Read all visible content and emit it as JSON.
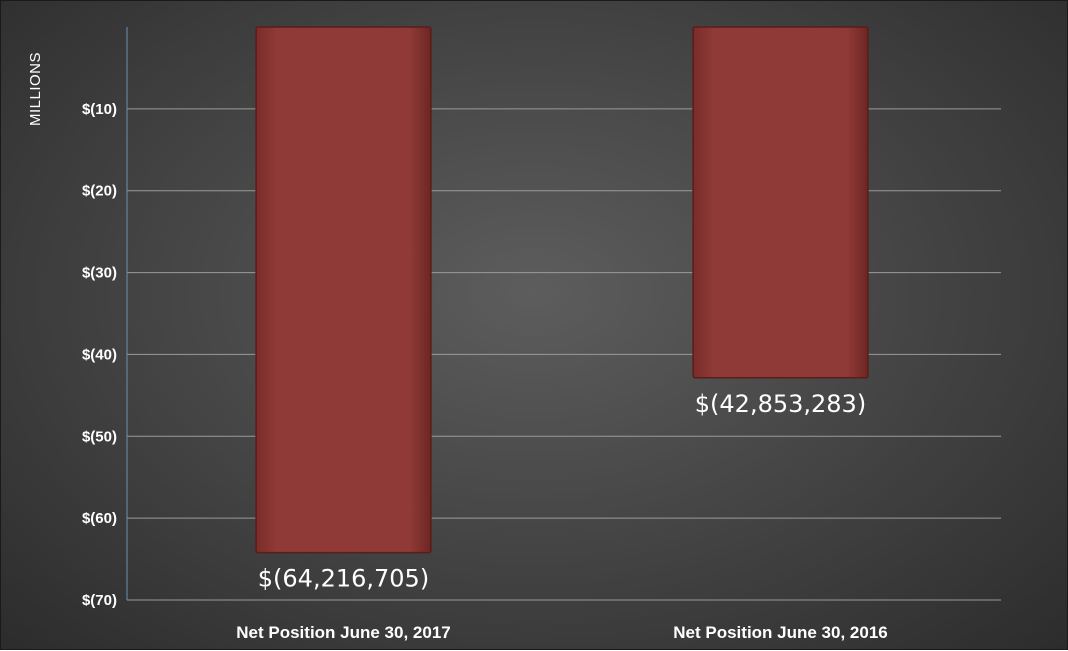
{
  "chart_data": {
    "type": "bar",
    "title": "",
    "xlabel": "",
    "ylabel": "MILLIONS",
    "categories": [
      "Net Position June 30, 2017",
      "Net Position June 30, 2016"
    ],
    "values": [
      -64.216705,
      -42.853283
    ],
    "data_labels": [
      "$(64,216,705)",
      "$(42,853,283)"
    ],
    "ylim": [
      -70,
      0
    ],
    "yticks": [
      -10,
      -20,
      -30,
      -40,
      -50,
      -60,
      -70
    ],
    "ytick_labels": [
      "$(10)",
      "$(20)",
      "$(30)",
      "$(40)",
      "$(50)",
      "$(60)",
      "$(70)"
    ],
    "grid": true,
    "legend": "none",
    "colors": {
      "bar": "#8b3632",
      "bar_edge": "#5a1d1b",
      "gridline": "#9a9a9a",
      "axis": "#6d8fb3",
      "text": "#ffffff"
    }
  }
}
